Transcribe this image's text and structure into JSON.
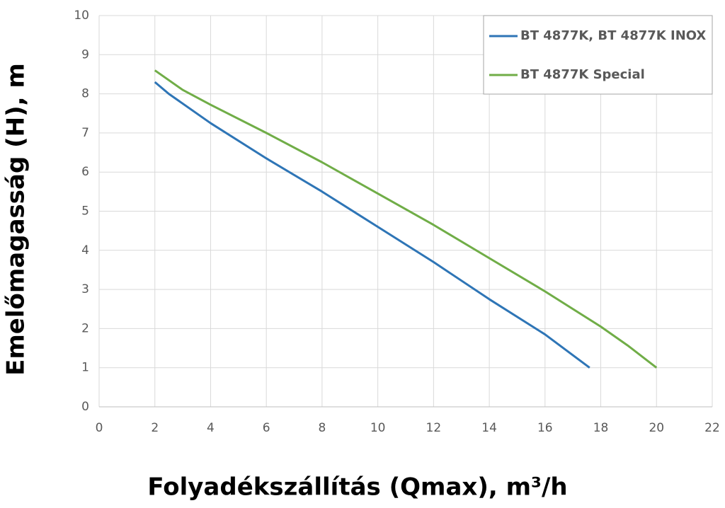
{
  "chart_data": {
    "type": "line",
    "x_label": "Folyadékszállítás (Qmax), m³/h",
    "y_label": "Emelőmagasság (H), m",
    "series": [
      {
        "name": "BT 4877K, BT 4877K INOX",
        "color": "#2e75b6",
        "x": [
          2,
          2.5,
          4,
          6,
          8,
          10,
          12,
          14,
          16,
          17.6
        ],
        "values": [
          8.3,
          8.0,
          7.25,
          6.35,
          5.5,
          4.6,
          3.7,
          2.75,
          1.85,
          1.0
        ]
      },
      {
        "name": "BT 4877K Special",
        "color": "#70ad47",
        "x": [
          2,
          3,
          4,
          6,
          8,
          10,
          12,
          14,
          16,
          18,
          19,
          20
        ],
        "values": [
          8.6,
          8.1,
          7.72,
          7.0,
          6.25,
          5.45,
          4.65,
          3.8,
          2.95,
          2.05,
          1.55,
          1.0
        ]
      }
    ],
    "xlim": [
      0,
      22
    ],
    "xticks": [
      0,
      2,
      4,
      6,
      8,
      10,
      12,
      14,
      16,
      18,
      20,
      22
    ],
    "ylim": [
      0,
      10
    ],
    "yticks": [
      0,
      1,
      2,
      3,
      4,
      5,
      6,
      7,
      8,
      9,
      10
    ],
    "grid": true,
    "legend": "top-right"
  }
}
